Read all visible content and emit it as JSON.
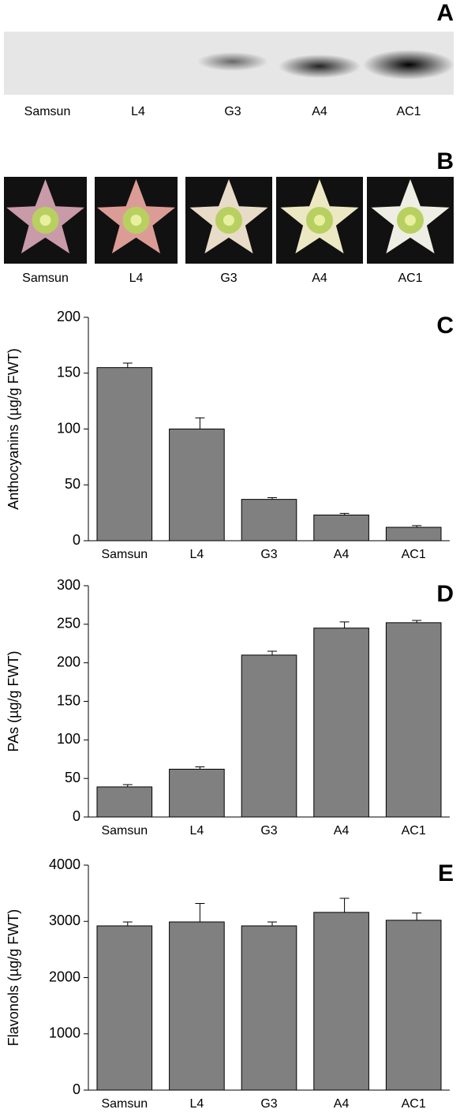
{
  "blot": {
    "label": "A",
    "lanes": [
      "Samsun",
      "L4",
      "G3",
      "A4",
      "AC1"
    ]
  },
  "photos": {
    "label": "B",
    "lanes": [
      "Samsun",
      "L4",
      "G3",
      "A4",
      "AC1"
    ]
  },
  "chart_data": [
    {
      "type": "bar",
      "label": "C",
      "y_label": "Anthocyanins (µg/g FWT)",
      "categories": [
        "Samsun",
        "L4",
        "G3",
        "A4",
        "AC1"
      ],
      "values": [
        155,
        100,
        37,
        23,
        12
      ],
      "errors": [
        4,
        10,
        1.5,
        1.5,
        1.5
      ],
      "color": "#808080",
      "ylim": [
        0,
        200
      ],
      "yticks": [
        0,
        50,
        100,
        150,
        200
      ]
    },
    {
      "type": "bar",
      "label": "D",
      "y_label": "PAs (µg/g FWT)",
      "categories": [
        "Samsun",
        "L4",
        "G3",
        "A4",
        "AC1"
      ],
      "values": [
        39,
        62,
        210,
        245,
        252
      ],
      "errors": [
        3,
        3,
        5,
        8,
        3
      ],
      "color": "#808080",
      "ylim": [
        0,
        300
      ],
      "yticks": [
        0,
        50,
        100,
        150,
        200,
        250,
        300
      ]
    },
    {
      "type": "bar",
      "label": "E",
      "y_label": "Flavonols (µg/g FWT)",
      "categories": [
        "Samsun",
        "L4",
        "G3",
        "A4",
        "AC1"
      ],
      "values": [
        2920,
        2990,
        2920,
        3160,
        3020
      ],
      "errors": [
        70,
        330,
        70,
        250,
        130
      ],
      "color": "#808080",
      "ylim": [
        0,
        4000
      ],
      "yticks": [
        0,
        1000,
        2000,
        3000,
        4000
      ]
    }
  ]
}
